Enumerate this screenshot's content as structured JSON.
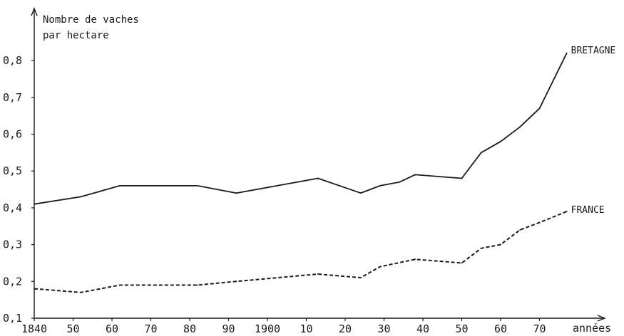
{
  "chart_data": {
    "type": "line",
    "title_lines": [
      "Nombre de vaches",
      "par hectare"
    ],
    "xlabel": "années",
    "ylabel": "",
    "xlim": [
      1840,
      1985
    ],
    "ylim": [
      0.1,
      0.85
    ],
    "yticks": [
      {
        "value": 0.1,
        "label": "0,1"
      },
      {
        "value": 0.2,
        "label": "0,2"
      },
      {
        "value": 0.3,
        "label": "0,3"
      },
      {
        "value": 0.4,
        "label": "0,4"
      },
      {
        "value": 0.5,
        "label": "0,5"
      },
      {
        "value": 0.6,
        "label": "0,6"
      },
      {
        "value": 0.7,
        "label": "0,7"
      },
      {
        "value": 0.8,
        "label": "0,8"
      }
    ],
    "xticks": [
      {
        "value": 1840,
        "label": "1840"
      },
      {
        "value": 1850,
        "label": "50"
      },
      {
        "value": 1860,
        "label": "60"
      },
      {
        "value": 1870,
        "label": "70"
      },
      {
        "value": 1880,
        "label": "80"
      },
      {
        "value": 1890,
        "label": "90"
      },
      {
        "value": 1900,
        "label": "1900"
      },
      {
        "value": 1910,
        "label": "10"
      },
      {
        "value": 1920,
        "label": "20"
      },
      {
        "value": 1930,
        "label": "30"
      },
      {
        "value": 1940,
        "label": "40"
      },
      {
        "value": 1950,
        "label": "50"
      },
      {
        "value": 1960,
        "label": "60"
      },
      {
        "value": 1970,
        "label": "70"
      }
    ],
    "grid": false,
    "series": [
      {
        "name": "BRETAGNE",
        "style": "solid",
        "x": [
          1840,
          1852,
          1862,
          1882,
          1892,
          1913,
          1924,
          1929,
          1934,
          1938,
          1950,
          1955,
          1960,
          1965,
          1970,
          1977
        ],
        "y": [
          0.41,
          0.43,
          0.46,
          0.46,
          0.44,
          0.48,
          0.44,
          0.46,
          0.47,
          0.49,
          0.48,
          0.55,
          0.58,
          0.62,
          0.67,
          0.82
        ]
      },
      {
        "name": "FRANCE",
        "style": "dashed",
        "x": [
          1840,
          1852,
          1862,
          1882,
          1892,
          1913,
          1924,
          1929,
          1938,
          1950,
          1955,
          1960,
          1965,
          1970,
          1977
        ],
        "y": [
          0.18,
          0.17,
          0.19,
          0.19,
          0.2,
          0.22,
          0.21,
          0.24,
          0.26,
          0.25,
          0.29,
          0.3,
          0.34,
          0.36,
          0.39
        ]
      }
    ]
  }
}
